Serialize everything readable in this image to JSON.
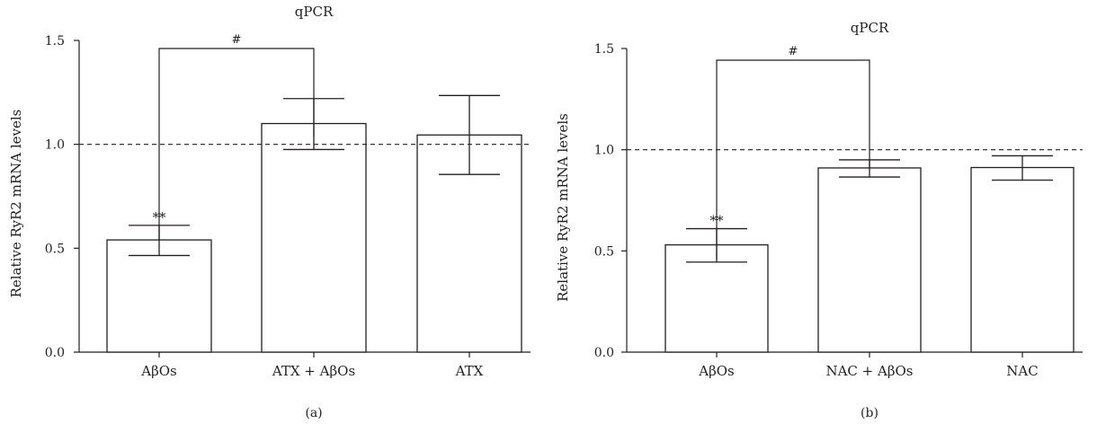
{
  "chart_data": [
    {
      "type": "bar",
      "title": "qPCR",
      "panel_label": "(a)",
      "ylabel": "Relative RyR2 mRNA levels",
      "xlabel": "",
      "ylim": [
        0,
        1.5
      ],
      "yticks": [
        "0.0",
        "0.5",
        "1.0",
        "1.5"
      ],
      "categories": [
        "AβOs",
        "ATX + AβOs",
        "ATX"
      ],
      "values": [
        0.54,
        1.1,
        1.045
      ],
      "error_lower": [
        0.465,
        0.975,
        0.855
      ],
      "error_upper": [
        0.61,
        1.22,
        1.235
      ],
      "reference_line": 1.0,
      "annotations": [
        {
          "bar": 0,
          "text": "**"
        }
      ],
      "bracket": {
        "from": 0,
        "to": 1,
        "text": "#"
      }
    },
    {
      "type": "bar",
      "title": "qPCR",
      "panel_label": "(b)",
      "ylabel": "Relative RyR2 mRNA levels",
      "xlabel": "",
      "ylim": [
        0,
        1.5
      ],
      "yticks": [
        "0.0",
        "0.5",
        "1.0",
        "1.5"
      ],
      "categories": [
        "AβOs",
        "NAC + AβOs",
        "NAC"
      ],
      "values": [
        0.53,
        0.91,
        0.912
      ],
      "error_lower": [
        0.445,
        0.865,
        0.85
      ],
      "error_upper": [
        0.61,
        0.95,
        0.97
      ],
      "reference_line": 1.0,
      "annotations": [
        {
          "bar": 0,
          "text": "**"
        }
      ],
      "bracket": {
        "from": 0,
        "to": 1,
        "text": "#"
      }
    }
  ]
}
